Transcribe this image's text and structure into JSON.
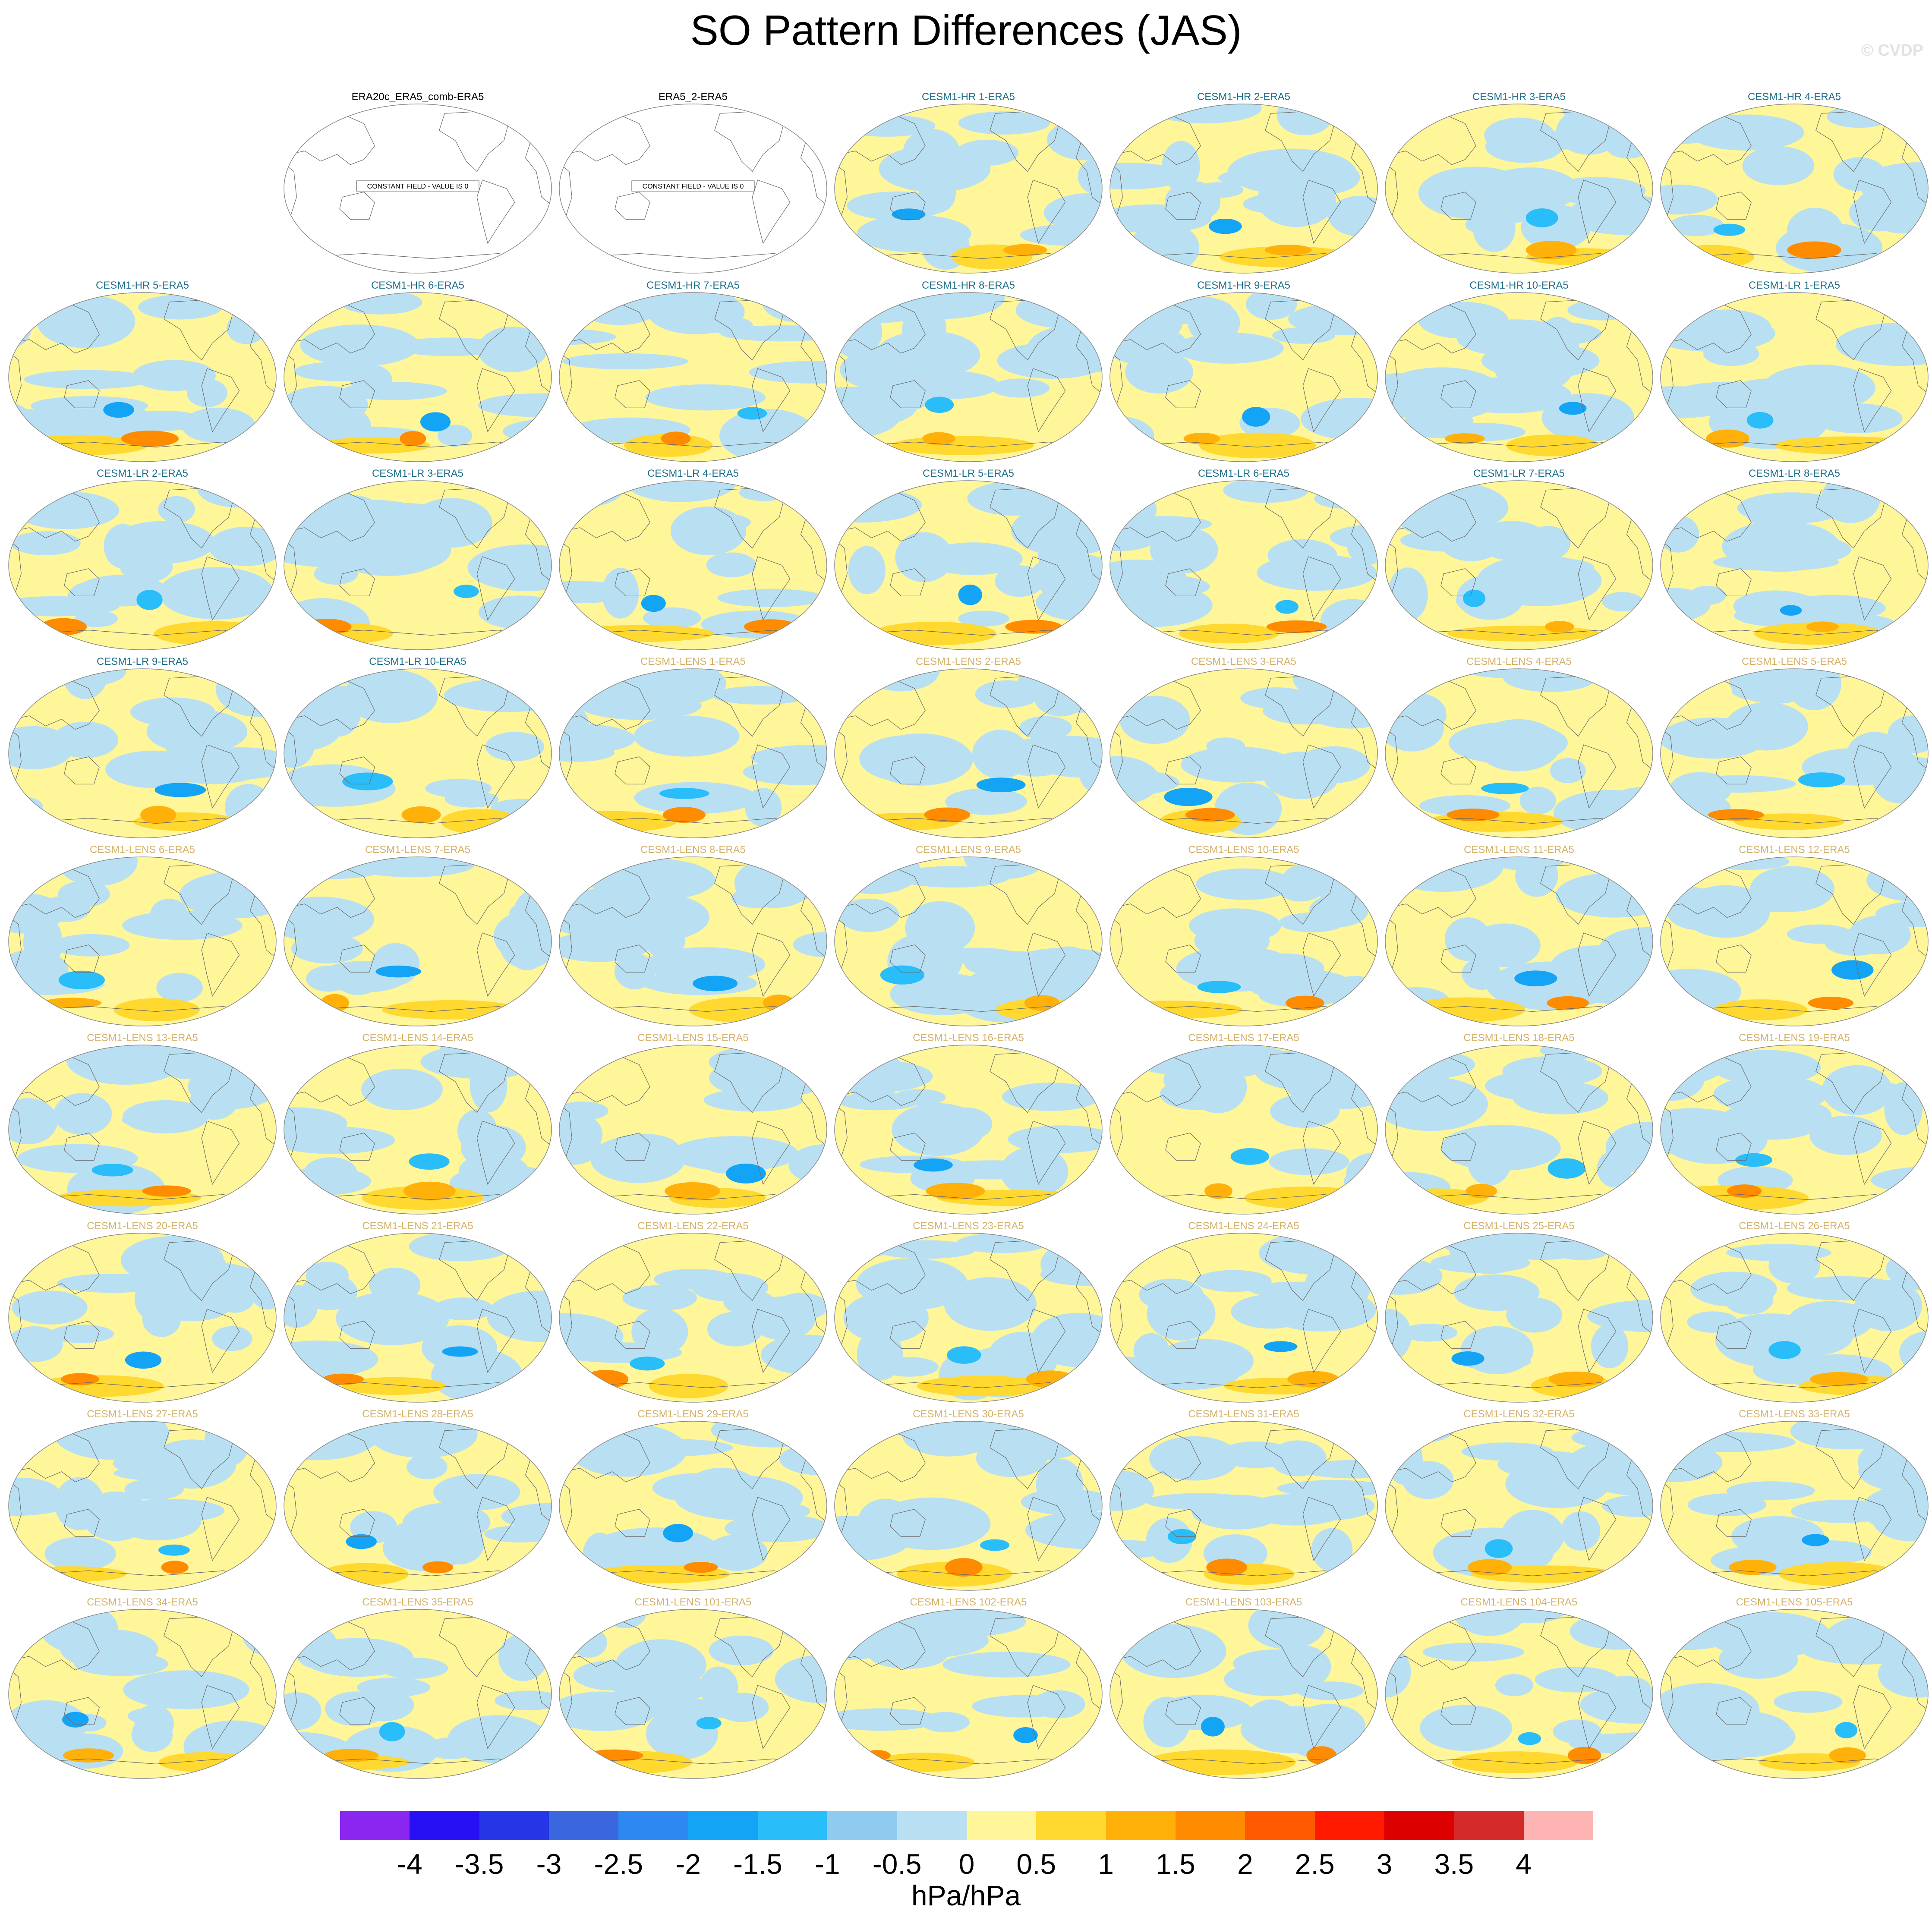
{
  "title": "SO Pattern Differences (JAS)",
  "credit": "© CVDP",
  "constant_field_label": "CONSTANT FIELD - VALUE IS 0",
  "colorbar": {
    "units": "hPa/hPa",
    "ticks": [
      "-4",
      "-3.5",
      "-3",
      "-2.5",
      "-2",
      "-1.5",
      "-1",
      "-0.5",
      "0",
      "0.5",
      "1",
      "1.5",
      "2",
      "2.5",
      "3",
      "3.5",
      "4"
    ],
    "colors": [
      "#8b26f0",
      "#2810f5",
      "#2436e6",
      "#3b67de",
      "#2e88f2",
      "#14a4f6",
      "#29bdf9",
      "#8ecbee",
      "#b9e0f2",
      "#fff599",
      "#ffd830",
      "#ffb10a",
      "#ff8c00",
      "#ff5a00",
      "#ff1a00",
      "#dc0000",
      "#d42a2a",
      "#ffb4b4"
    ]
  },
  "colors": {
    "panel_title_obs": "#000000",
    "panel_title_hr_lr": "#1f6f8b",
    "panel_title_lens": "#d4b26a",
    "ocean_positive": "#fff599",
    "ocean_negative": "#b9e0f2"
  },
  "panels": [
    {
      "label": "ERA20c_ERA5_comb-ERA5",
      "group": "obs",
      "constant": true
    },
    {
      "label": "ERA5_2-ERA5",
      "group": "obs",
      "constant": true
    },
    {
      "label": "CESM1-HR 1-ERA5",
      "group": "hr"
    },
    {
      "label": "CESM1-HR 2-ERA5",
      "group": "hr"
    },
    {
      "label": "CESM1-HR 3-ERA5",
      "group": "hr"
    },
    {
      "label": "CESM1-HR 4-ERA5",
      "group": "hr"
    },
    {
      "label": "CESM1-HR 5-ERA5",
      "group": "hr"
    },
    {
      "label": "CESM1-HR 6-ERA5",
      "group": "hr"
    },
    {
      "label": "CESM1-HR 7-ERA5",
      "group": "hr"
    },
    {
      "label": "CESM1-HR 8-ERA5",
      "group": "hr"
    },
    {
      "label": "CESM1-HR 9-ERA5",
      "group": "hr"
    },
    {
      "label": "CESM1-HR 10-ERA5",
      "group": "hr"
    },
    {
      "label": "CESM1-LR 1-ERA5",
      "group": "lr"
    },
    {
      "label": "CESM1-LR 2-ERA5",
      "group": "lr"
    },
    {
      "label": "CESM1-LR 3-ERA5",
      "group": "lr"
    },
    {
      "label": "CESM1-LR 4-ERA5",
      "group": "lr"
    },
    {
      "label": "CESM1-LR 5-ERA5",
      "group": "lr"
    },
    {
      "label": "CESM1-LR 6-ERA5",
      "group": "lr"
    },
    {
      "label": "CESM1-LR 7-ERA5",
      "group": "lr"
    },
    {
      "label": "CESM1-LR 8-ERA5",
      "group": "lr"
    },
    {
      "label": "CESM1-LR 9-ERA5",
      "group": "lr"
    },
    {
      "label": "CESM1-LR 10-ERA5",
      "group": "lr"
    },
    {
      "label": "CESM1-LENS 1-ERA5",
      "group": "lens"
    },
    {
      "label": "CESM1-LENS 2-ERA5",
      "group": "lens"
    },
    {
      "label": "CESM1-LENS 3-ERA5",
      "group": "lens"
    },
    {
      "label": "CESM1-LENS 4-ERA5",
      "group": "lens"
    },
    {
      "label": "CESM1-LENS 5-ERA5",
      "group": "lens"
    },
    {
      "label": "CESM1-LENS 6-ERA5",
      "group": "lens"
    },
    {
      "label": "CESM1-LENS 7-ERA5",
      "group": "lens"
    },
    {
      "label": "CESM1-LENS 8-ERA5",
      "group": "lens"
    },
    {
      "label": "CESM1-LENS 9-ERA5",
      "group": "lens"
    },
    {
      "label": "CESM1-LENS 10-ERA5",
      "group": "lens"
    },
    {
      "label": "CESM1-LENS 11-ERA5",
      "group": "lens"
    },
    {
      "label": "CESM1-LENS 12-ERA5",
      "group": "lens"
    },
    {
      "label": "CESM1-LENS 13-ERA5",
      "group": "lens"
    },
    {
      "label": "CESM1-LENS 14-ERA5",
      "group": "lens"
    },
    {
      "label": "CESM1-LENS 15-ERA5",
      "group": "lens"
    },
    {
      "label": "CESM1-LENS 16-ERA5",
      "group": "lens"
    },
    {
      "label": "CESM1-LENS 17-ERA5",
      "group": "lens"
    },
    {
      "label": "CESM1-LENS 18-ERA5",
      "group": "lens"
    },
    {
      "label": "CESM1-LENS 19-ERA5",
      "group": "lens"
    },
    {
      "label": "CESM1-LENS 20-ERA5",
      "group": "lens"
    },
    {
      "label": "CESM1-LENS 21-ERA5",
      "group": "lens"
    },
    {
      "label": "CESM1-LENS 22-ERA5",
      "group": "lens"
    },
    {
      "label": "CESM1-LENS 23-ERA5",
      "group": "lens"
    },
    {
      "label": "CESM1-LENS 24-ERA5",
      "group": "lens"
    },
    {
      "label": "CESM1-LENS 25-ERA5",
      "group": "lens"
    },
    {
      "label": "CESM1-LENS 26-ERA5",
      "group": "lens"
    },
    {
      "label": "CESM1-LENS 27-ERA5",
      "group": "lens"
    },
    {
      "label": "CESM1-LENS 28-ERA5",
      "group": "lens"
    },
    {
      "label": "CESM1-LENS 29-ERA5",
      "group": "lens"
    },
    {
      "label": "CESM1-LENS 30-ERA5",
      "group": "lens"
    },
    {
      "label": "CESM1-LENS 31-ERA5",
      "group": "lens"
    },
    {
      "label": "CESM1-LENS 32-ERA5",
      "group": "lens"
    },
    {
      "label": "CESM1-LENS 33-ERA5",
      "group": "lens"
    },
    {
      "label": "CESM1-LENS 34-ERA5",
      "group": "lens"
    },
    {
      "label": "CESM1-LENS 35-ERA5",
      "group": "lens"
    },
    {
      "label": "CESM1-LENS 101-ERA5",
      "group": "lens"
    },
    {
      "label": "CESM1-LENS 102-ERA5",
      "group": "lens"
    },
    {
      "label": "CESM1-LENS 103-ERA5",
      "group": "lens"
    },
    {
      "label": "CESM1-LENS 104-ERA5",
      "group": "lens"
    },
    {
      "label": "CESM1-LENS 105-ERA5",
      "group": "lens"
    }
  ]
}
